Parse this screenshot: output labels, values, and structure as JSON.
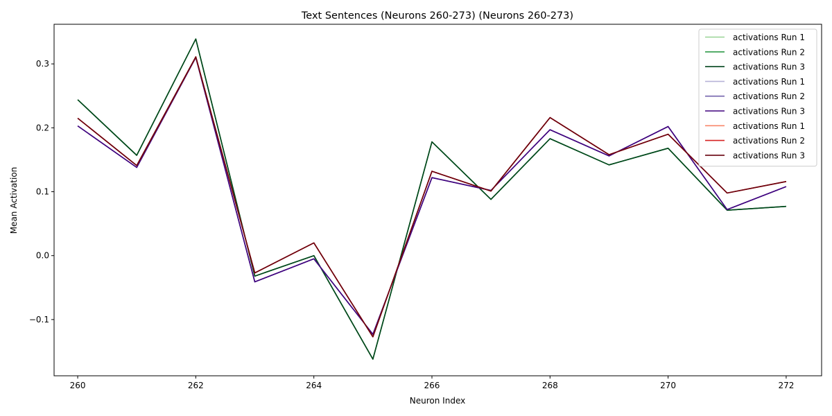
{
  "chart_data": {
    "type": "line",
    "title": "Text Sentences (Neurons 260-273) (Neurons 260-273)",
    "xlabel": "Neuron Index",
    "ylabel": "Mean Activation",
    "x": [
      260,
      261,
      262,
      263,
      264,
      265,
      266,
      267,
      268,
      269,
      270,
      271,
      272
    ],
    "xlim": [
      259.6,
      272.6
    ],
    "ylim": [
      -0.188,
      0.362
    ],
    "xticks": [
      260,
      262,
      264,
      266,
      268,
      270,
      272
    ],
    "yticks": [
      -0.1,
      0.0,
      0.1,
      0.2,
      0.3
    ],
    "ytick_labels": [
      "−0.1",
      "0.0",
      "0.1",
      "0.2",
      "0.3"
    ],
    "grid": false,
    "legend_position": "top-right",
    "series": [
      {
        "name": "activations Run 1",
        "color": "#98d494",
        "values": [
          0.244,
          0.157,
          0.339,
          -0.032,
          0.0,
          -0.162,
          0.178,
          0.088,
          0.183,
          0.142,
          0.168,
          0.071,
          0.077
        ]
      },
      {
        "name": "activations Run 2",
        "color": "#2f9a49",
        "values": [
          0.244,
          0.157,
          0.339,
          -0.032,
          0.0,
          -0.162,
          0.178,
          0.088,
          0.183,
          0.142,
          0.168,
          0.071,
          0.077
        ]
      },
      {
        "name": "activations Run 3",
        "color": "#00441b",
        "values": [
          0.244,
          0.157,
          0.339,
          -0.032,
          0.0,
          -0.162,
          0.178,
          0.088,
          0.183,
          0.142,
          0.168,
          0.071,
          0.077
        ]
      },
      {
        "name": "activations Run 1",
        "color": "#b6b3d8",
        "values": [
          0.203,
          0.138,
          0.31,
          -0.041,
          -0.005,
          -0.123,
          0.122,
          0.102,
          0.197,
          0.156,
          0.202,
          0.072,
          0.108
        ]
      },
      {
        "name": "activations Run 2",
        "color": "#7363ac",
        "values": [
          0.203,
          0.138,
          0.31,
          -0.041,
          -0.005,
          -0.123,
          0.122,
          0.102,
          0.197,
          0.156,
          0.202,
          0.072,
          0.108
        ]
      },
      {
        "name": "activations Run 3",
        "color": "#3f007d",
        "values": [
          0.203,
          0.138,
          0.31,
          -0.041,
          -0.005,
          -0.123,
          0.122,
          0.102,
          0.197,
          0.156,
          0.202,
          0.072,
          0.108
        ]
      },
      {
        "name": "activations Run 1",
        "color": "#f9876a",
        "values": [
          0.215,
          0.141,
          0.311,
          -0.027,
          0.02,
          -0.127,
          0.132,
          0.101,
          0.216,
          0.158,
          0.19,
          0.098,
          0.116
        ]
      },
      {
        "name": "activations Run 2",
        "color": "#d52221",
        "values": [
          0.215,
          0.141,
          0.311,
          -0.027,
          0.02,
          -0.127,
          0.132,
          0.101,
          0.216,
          0.158,
          0.19,
          0.098,
          0.116
        ]
      },
      {
        "name": "activations Run 3",
        "color": "#67000d",
        "values": [
          0.215,
          0.141,
          0.311,
          -0.027,
          0.02,
          -0.127,
          0.132,
          0.101,
          0.216,
          0.158,
          0.19,
          0.098,
          0.116
        ]
      }
    ]
  }
}
